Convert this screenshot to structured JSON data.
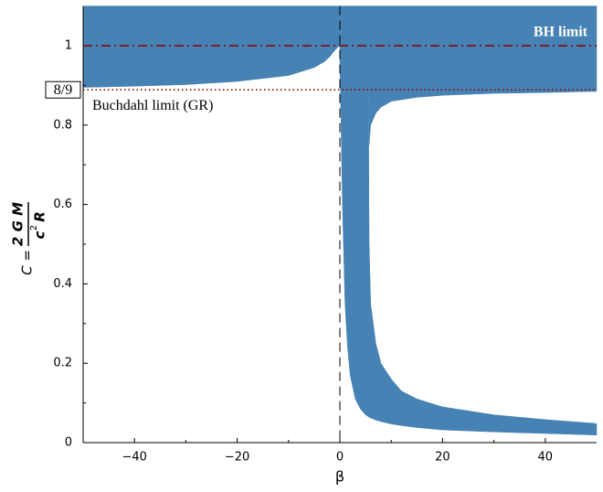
{
  "chart_data": {
    "type": "band",
    "xlabel": "β",
    "ylabel": {
      "lhs": "C =",
      "numerator": "2 G M",
      "denominator": "c",
      "denominator_power": "2",
      "denominator_rest": "R"
    },
    "xlim": [
      -50,
      50
    ],
    "ylim": [
      0,
      1.1
    ],
    "xticks": [
      {
        "value": -40,
        "label": "−40"
      },
      {
        "value": -20,
        "label": "−20"
      },
      0,
      20,
      40
    ],
    "xminorticks": [
      -30,
      -10,
      10,
      30
    ],
    "yticks": [
      0,
      0.2,
      0.4,
      0.6,
      0.8,
      1
    ],
    "yminorticks": [
      0.1,
      0.3,
      0.5,
      0.7,
      0.9
    ],
    "series": [
      {
        "color": "#4682b4",
        "x": [
          -50,
          -40,
          -30,
          -20,
          -10,
          -5,
          -3,
          -2,
          -1,
          -0.5,
          0
        ],
        "lower": [
          0.895,
          0.898,
          0.902,
          0.91,
          0.925,
          0.945,
          0.96,
          0.972,
          0.988,
          0.995,
          1.0
        ],
        "upper": [
          1.1,
          1.1,
          1.1,
          1.1,
          1.1,
          1.1,
          1.1,
          1.1,
          1.1,
          1.1,
          1.1
        ]
      },
      {
        "color": "#4682b4",
        "x": [
          0,
          0.5,
          1,
          1.5,
          2,
          3,
          4,
          5,
          5.5,
          5.7,
          6,
          7,
          8,
          10,
          12,
          15,
          20,
          30,
          40,
          50
        ],
        "lower": [
          0.97,
          0.6,
          0.35,
          0.24,
          0.17,
          0.11,
          0.085,
          0.07,
          0.066,
          0.064,
          0.062,
          0.057,
          0.053,
          0.047,
          0.043,
          0.038,
          0.032,
          0.027,
          0.023,
          0.019
        ],
        "upper": [
          1.1,
          1.1,
          1.1,
          1.1,
          1.1,
          1.1,
          1.1,
          1.1,
          1.1,
          0.5,
          0.35,
          0.25,
          0.2,
          0.16,
          0.13,
          0.11,
          0.09,
          0.07,
          0.058,
          0.048
        ]
      },
      {
        "color": "#4682b4",
        "x": [
          5.5,
          5.7,
          6,
          7,
          8,
          10,
          15,
          20,
          30,
          40,
          50
        ],
        "lower": [
          1.1,
          0.75,
          0.8,
          0.83,
          0.845,
          0.86,
          0.87,
          0.875,
          0.88,
          0.882,
          0.885
        ],
        "upper": [
          1.1,
          1.1,
          1.1,
          1.1,
          1.1,
          1.1,
          1.1,
          1.1,
          1.1,
          1.1,
          1.1
        ]
      }
    ],
    "hlines": [
      {
        "y": 1,
        "label": "BH limit",
        "color": "#8b0000",
        "style": "dashdot"
      },
      {
        "y": 0.8889,
        "tick_label": "8/9",
        "label": "Buchdahl limit (GR)",
        "color": "#8b0000",
        "style": "dotted"
      }
    ],
    "vlines": [
      {
        "x": 0,
        "color": "#000000",
        "style": "dashed"
      }
    ]
  }
}
